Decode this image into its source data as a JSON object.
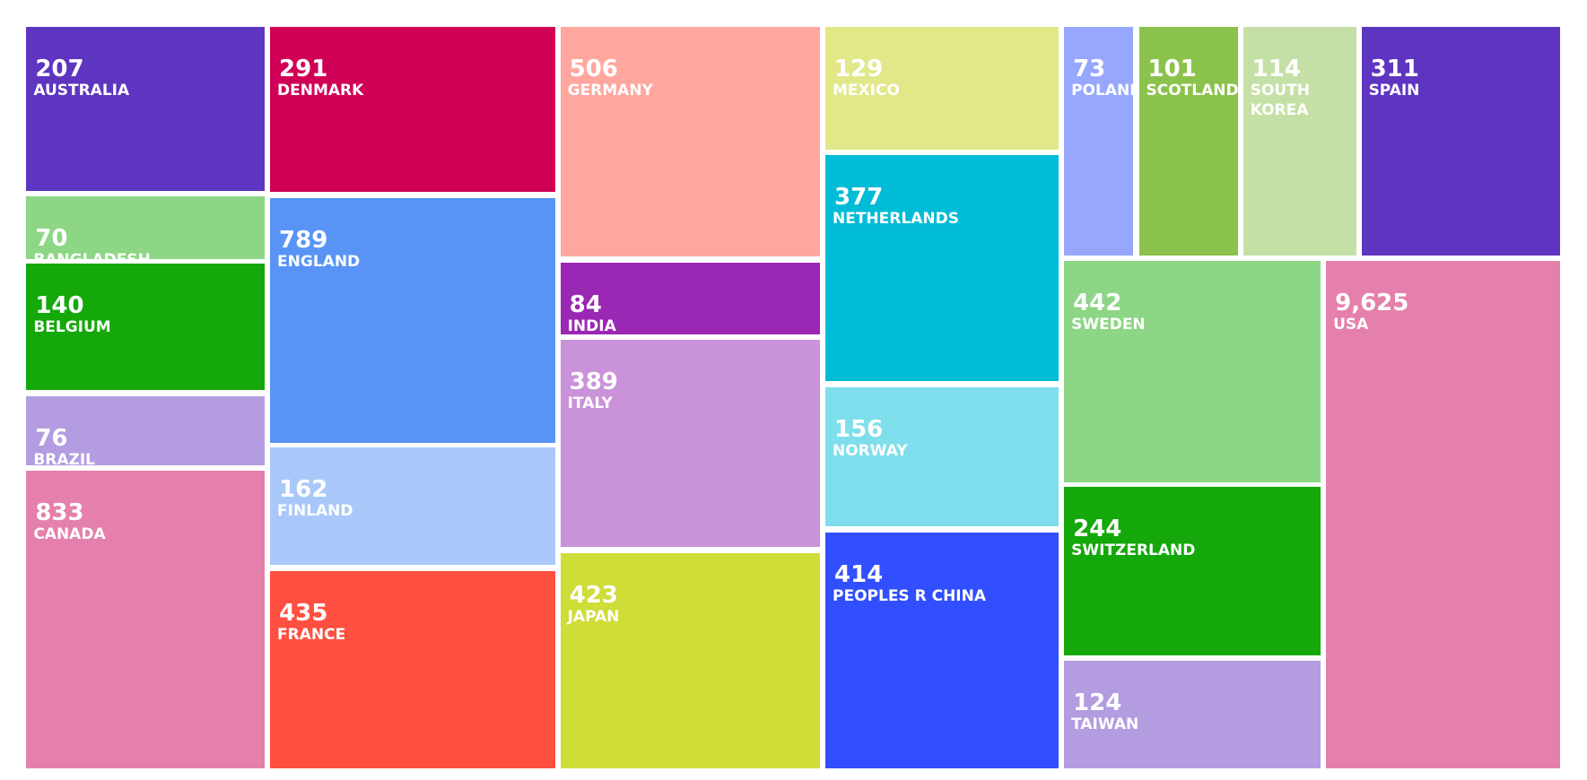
{
  "chart_data": {
    "type": "treemap",
    "categories": [
      "AUSTRALIA",
      "BANGLADESH",
      "BELGIUM",
      "BRAZIL",
      "CANADA",
      "DENMARK",
      "ENGLAND",
      "FINLAND",
      "FRANCE",
      "GERMANY",
      "INDIA",
      "ITALY",
      "JAPAN",
      "MEXICO",
      "NETHERLANDS",
      "NORWAY",
      "PEOPLES R CHINA",
      "POLAND",
      "SCOTLAND",
      "SOUTH KOREA",
      "SPAIN",
      "SWEDEN",
      "SWITZERLAND",
      "TAIWAN",
      "USA"
    ],
    "values": [
      207,
      70,
      140,
      76,
      833,
      291,
      789,
      162,
      435,
      506,
      84,
      389,
      423,
      129,
      377,
      156,
      414,
      73,
      101,
      114,
      311,
      442,
      244,
      124,
      9625
    ],
    "value_labels": [
      "207",
      "70",
      "140",
      "76",
      "833",
      "291",
      "789",
      "162",
      "435",
      "506",
      "84",
      "389",
      "423",
      "129",
      "377",
      "156",
      "414",
      "73",
      "101",
      "114",
      "311",
      "442",
      "244",
      "124",
      "9,625"
    ],
    "colors": [
      "#5e35c0",
      "#8cd685",
      "#14a80a",
      "#b39ce0",
      "#e57fab",
      "#d00057",
      "#5893f5",
      "#a9c8f9",
      "#ff4f40",
      "#ffa79e",
      "#9b27b5",
      "#ca92d8",
      "#cedd38",
      "#e2e888",
      "#00bcd6",
      "#7fdeeb",
      "#314ffe",
      "#96a7fd",
      "#8bc24b",
      "#c5e0a6",
      "#5e35c0",
      "#8cd685",
      "#14a80a",
      "#b39ce0",
      "#e57fab"
    ]
  }
}
